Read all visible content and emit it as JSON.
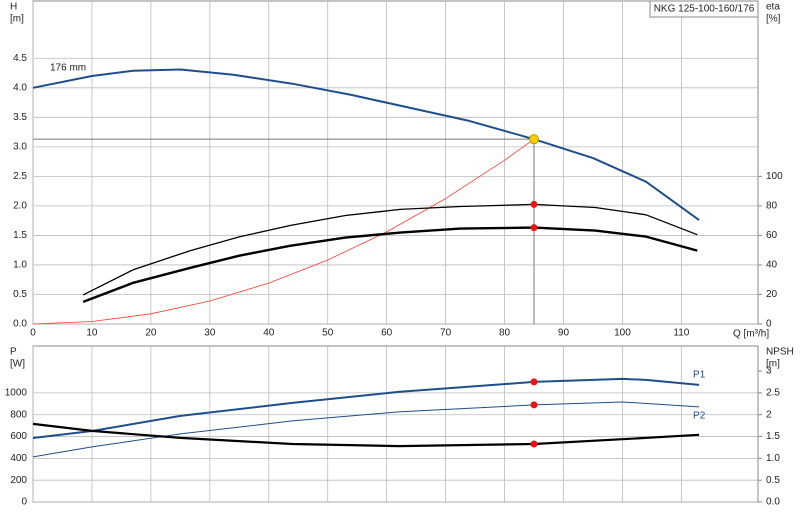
{
  "chart_data": [
    {
      "type": "line",
      "title": "NKG 125-100-160/176",
      "ylabel": "H",
      "yunit": "[m]",
      "y2label": "eta",
      "y2unit": "[%]",
      "xlabel": "Q [m³/h]",
      "xlim": [
        0,
        123
      ],
      "ylim": [
        0,
        5.47
      ],
      "y2lim": [
        0,
        218.8
      ],
      "grid": true,
      "xtick_labels": true,
      "xticks": [
        0,
        10,
        20,
        30,
        40,
        50,
        60,
        70,
        80,
        90,
        100,
        110
      ],
      "yticks": [
        {
          "value": 0,
          "label": "0.0"
        },
        0.5,
        {
          "value": 1,
          "label": "1.0"
        },
        1.5,
        {
          "value": 2,
          "label": "2.0"
        },
        2.5,
        {
          "value": 3,
          "label": "3.0"
        },
        3.5,
        {
          "value": 4,
          "label": "4.0"
        },
        4.5
      ],
      "y2ticks": [
        0,
        20,
        40,
        60,
        80,
        100
      ],
      "annotations": [
        "176 mm"
      ],
      "series": [
        {
          "color": "#1f4e8c",
          "width": 2,
          "x": [
            0,
            10,
            17,
            25,
            34,
            44,
            54,
            64,
            74,
            85,
            95,
            104,
            113
          ],
          "values": [
            4.0,
            4.2,
            4.29,
            4.31,
            4.22,
            4.07,
            3.88,
            3.66,
            3.44,
            3.13,
            2.81,
            2.41,
            1.76
          ]
        },
        {
          "color": "#ff3b2f",
          "width": 0.8,
          "x": [
            0,
            10,
            20,
            30,
            40,
            50,
            60,
            70,
            80,
            85
          ],
          "values": [
            0,
            0.043,
            0.173,
            0.39,
            0.693,
            1.083,
            1.56,
            2.123,
            2.773,
            3.13
          ]
        },
        {
          "color": "#000000",
          "width": 1.3,
          "axis": "y2",
          "x": [
            8.5,
            17,
            26.7,
            35,
            43.6,
            53,
            62.3,
            72.5,
            85,
            95.4,
            104,
            112.7
          ],
          "values": [
            19.7,
            36.7,
            49.7,
            59,
            66.7,
            73.5,
            77.6,
            79.6,
            81,
            78.9,
            74,
            60.5
          ]
        },
        {
          "color": "#000000",
          "width": 2.4,
          "axis": "y2",
          "x": [
            8.5,
            17,
            26.7,
            35,
            43.6,
            53,
            62.3,
            72.5,
            85,
            95.4,
            104,
            112.7
          ],
          "values": [
            15,
            27.9,
            38.1,
            46.3,
            53,
            58.5,
            61.9,
            64.6,
            65.3,
            63.3,
            59.2,
            49.7
          ]
        }
      ],
      "points": [
        {
          "x": 85,
          "y": 3.13,
          "color": "#f5d000",
          "crosshair": true
        },
        {
          "x": 85,
          "y": 81,
          "color": "#ee1111",
          "axis": "y2"
        },
        {
          "x": 85,
          "y": 65.3,
          "color": "#ee1111",
          "axis": "y2"
        }
      ]
    },
    {
      "type": "line",
      "ylabel": "P",
      "yunit": "[W]",
      "y2label": "NPSH",
      "y2unit": "[m]",
      "xlim": [
        0,
        123
      ],
      "ylim": [
        0,
        1430
      ],
      "y2lim": [
        0,
        3.575
      ],
      "grid": true,
      "xtick_labels": false,
      "xticks": [
        0,
        10,
        20,
        30,
        40,
        50,
        60,
        70,
        80,
        90,
        100,
        110
      ],
      "yticks": [
        0,
        200,
        400,
        600,
        800,
        1000
      ],
      "y2ticks": [
        {
          "value": 0,
          "label": "0.0"
        },
        0.5,
        {
          "value": 1,
          "label": "1.0"
        },
        1.5,
        2,
        2.5,
        3
      ],
      "series": [
        {
          "name": "P1",
          "color": "#1f4e8c",
          "width": 2,
          "x": [
            0,
            10,
            25,
            44,
            62,
            85,
            100,
            104,
            113
          ],
          "values": [
            587,
            651,
            789,
            908,
            1009,
            1101,
            1128,
            1119,
            1073
          ]
        },
        {
          "name": "P2",
          "color": "#1f4e8c",
          "width": 1,
          "x": [
            0,
            10,
            25,
            44,
            62,
            85,
            100,
            113
          ],
          "values": [
            413,
            505,
            624,
            743,
            826,
            890,
            917,
            872
          ]
        },
        {
          "color": "#000000",
          "width": 2.2,
          "axis": "y2",
          "x": [
            0,
            10,
            25,
            44,
            62,
            85,
            100,
            113
          ],
          "values": [
            1.79,
            1.63,
            1.47,
            1.33,
            1.28,
            1.33,
            1.44,
            1.54
          ]
        }
      ],
      "points": [
        {
          "x": 85,
          "y": 1101,
          "color": "#ee1111"
        },
        {
          "x": 85,
          "y": 890,
          "color": "#ee1111"
        },
        {
          "x": 85,
          "y": 1.33,
          "color": "#ee1111",
          "axis": "y2"
        }
      ]
    }
  ]
}
